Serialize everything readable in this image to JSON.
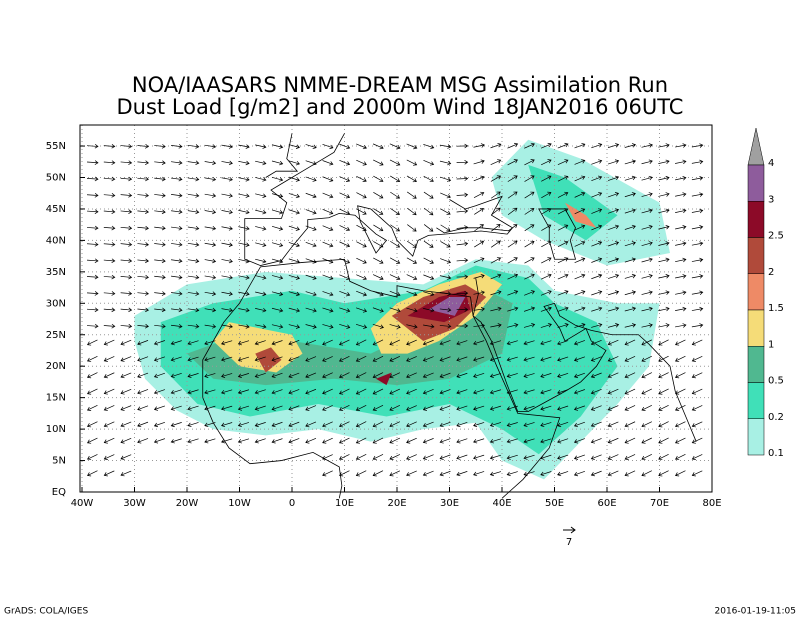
{
  "title": [
    "NOA/IAASARS NMME-DREAM MSG Assimilation Run",
    "Dust Load [g/m2] and 2000m Wind 18JAN2016 06UTC"
  ],
  "lat_ticks": [
    "55N",
    "50N",
    "45N",
    "40N",
    "35N",
    "30N",
    "25N",
    "20N",
    "15N",
    "10N",
    "5N",
    "EQ"
  ],
  "lon_ticks": [
    "40W",
    "30W",
    "20W",
    "10W",
    "0",
    "10E",
    "20E",
    "30E",
    "40E",
    "50E",
    "60E",
    "70E",
    "80E"
  ],
  "colorbar": {
    "labels": [
      "4",
      "3",
      "2.5",
      "2",
      "1.5",
      "1",
      "0.5",
      "0.2",
      "0.1"
    ],
    "colors": [
      "#a0a0a0",
      "#8e5c9c",
      "#8c0a28",
      "#b04a3a",
      "#ee8a66",
      "#f5dc78",
      "#50b890",
      "#40e0b8",
      "#a8f0e4"
    ]
  },
  "vector_scale": "7",
  "footer": {
    "left": "GrADS: COLA/IGES",
    "right": "2016-01-19-11:05"
  }
}
